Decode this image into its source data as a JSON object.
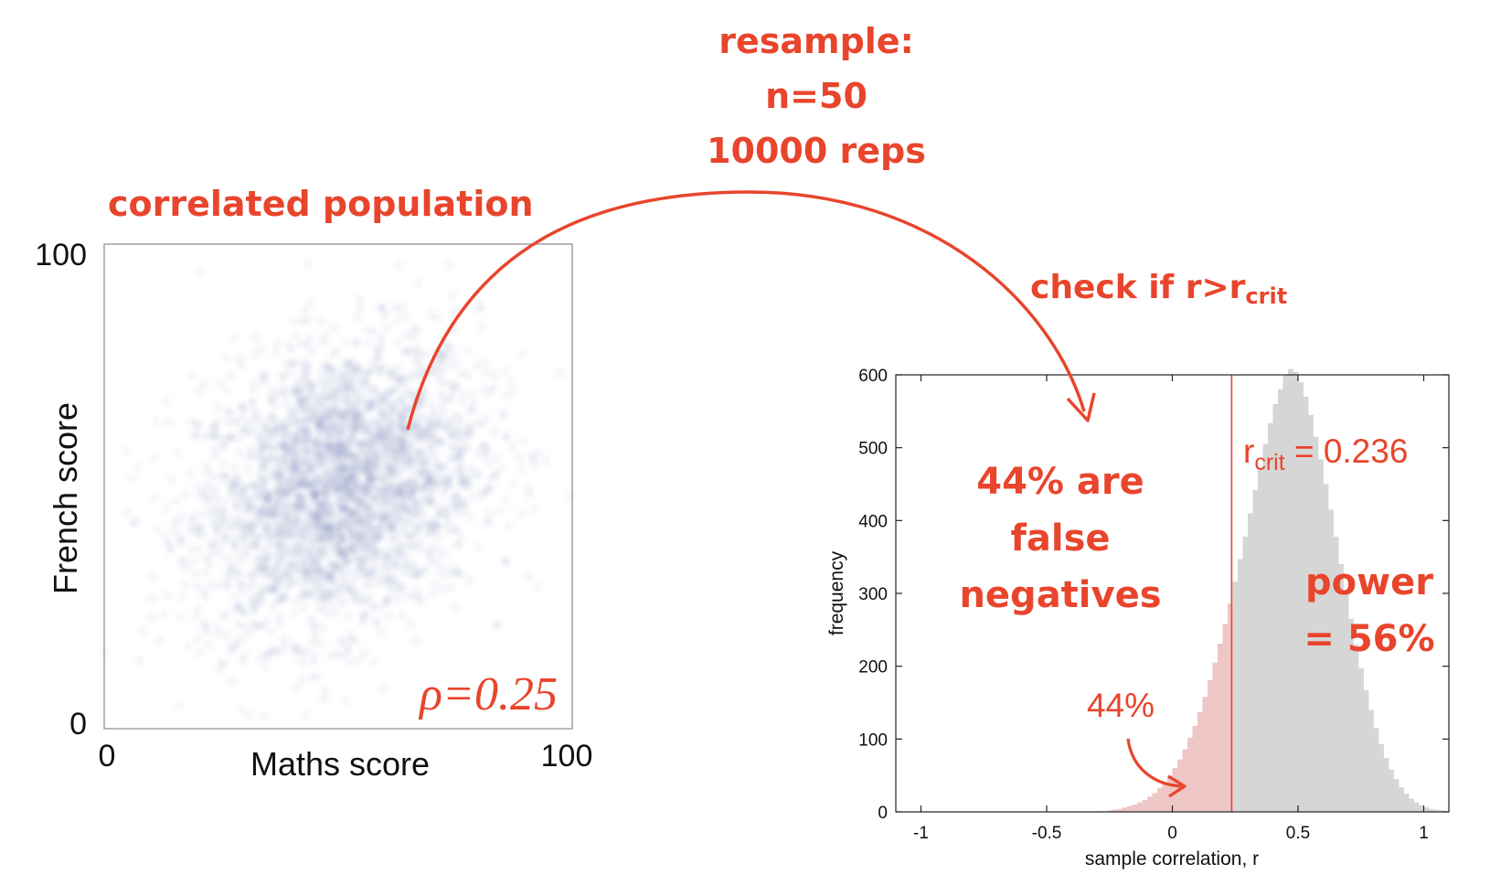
{
  "colors": {
    "annotation": "#e8452c",
    "scatter_points": "#5f74ad",
    "hist_below": "#efc6c6",
    "hist_above": "#d6d6d6",
    "critical_line": "#e8452c"
  },
  "annotations": {
    "population": "correlated population",
    "resample_line1": "resample:",
    "resample_line2": "n=50",
    "resample_line3": "10000 reps",
    "check": "check if r>r",
    "check_sub": "crit",
    "false_neg_line1": "44% are",
    "false_neg_line2": "false",
    "false_neg_line3": "negatives",
    "power_line1": "power",
    "power_line2": "= 56%",
    "rho": "ρ=0.25",
    "pct_below": "44%",
    "rcrit_main": "r",
    "rcrit_sub": "crit",
    "rcrit_value": " = 0.236"
  },
  "chart_data": [
    {
      "type": "scatter",
      "xlabel": "Maths score",
      "ylabel": "French score",
      "xlim": [
        0,
        100
      ],
      "ylim": [
        0,
        100
      ],
      "x_tick_labels": [
        "0",
        "100"
      ],
      "y_tick_labels": [
        "0",
        "100"
      ],
      "population": {
        "mean_x": 50,
        "mean_y": 50,
        "sd_x": 15,
        "sd_y": 15,
        "rho": 0.25
      },
      "grid": false
    },
    {
      "type": "bar",
      "subtype": "histogram",
      "xlabel": "sample correlation, r",
      "ylabel": "frequency",
      "xlim": [
        -1.1,
        1.1
      ],
      "ylim": [
        0,
        600
      ],
      "x_ticks": [
        -1,
        -0.5,
        0,
        0.5,
        1
      ],
      "x_tick_labels": [
        "-1",
        "-0.5",
        "0",
        "0.5",
        "1"
      ],
      "y_ticks": [
        0,
        100,
        200,
        300,
        400,
        500,
        600
      ],
      "y_tick_labels": [
        "0",
        "100",
        "200",
        "300",
        "400",
        "500",
        "600"
      ],
      "bin_width": 0.02,
      "bin_start": -0.3,
      "values": [
        1,
        1,
        2,
        3,
        4,
        6,
        8,
        10,
        13,
        16,
        21,
        26,
        33,
        40,
        50,
        60,
        72,
        86,
        102,
        118,
        137,
        158,
        181,
        205,
        231,
        258,
        286,
        316,
        347,
        378,
        410,
        442,
        474,
        505,
        534,
        560,
        580,
        600,
        608,
        604,
        590,
        570,
        545,
        515,
        484,
        450,
        415,
        378,
        340,
        302,
        265,
        230,
        197,
        167,
        140,
        115,
        93,
        74,
        58,
        45,
        34,
        25,
        18,
        13,
        9,
        6,
        4,
        3,
        2,
        1
      ],
      "r_crit": 0.236,
      "grid": false
    }
  ]
}
